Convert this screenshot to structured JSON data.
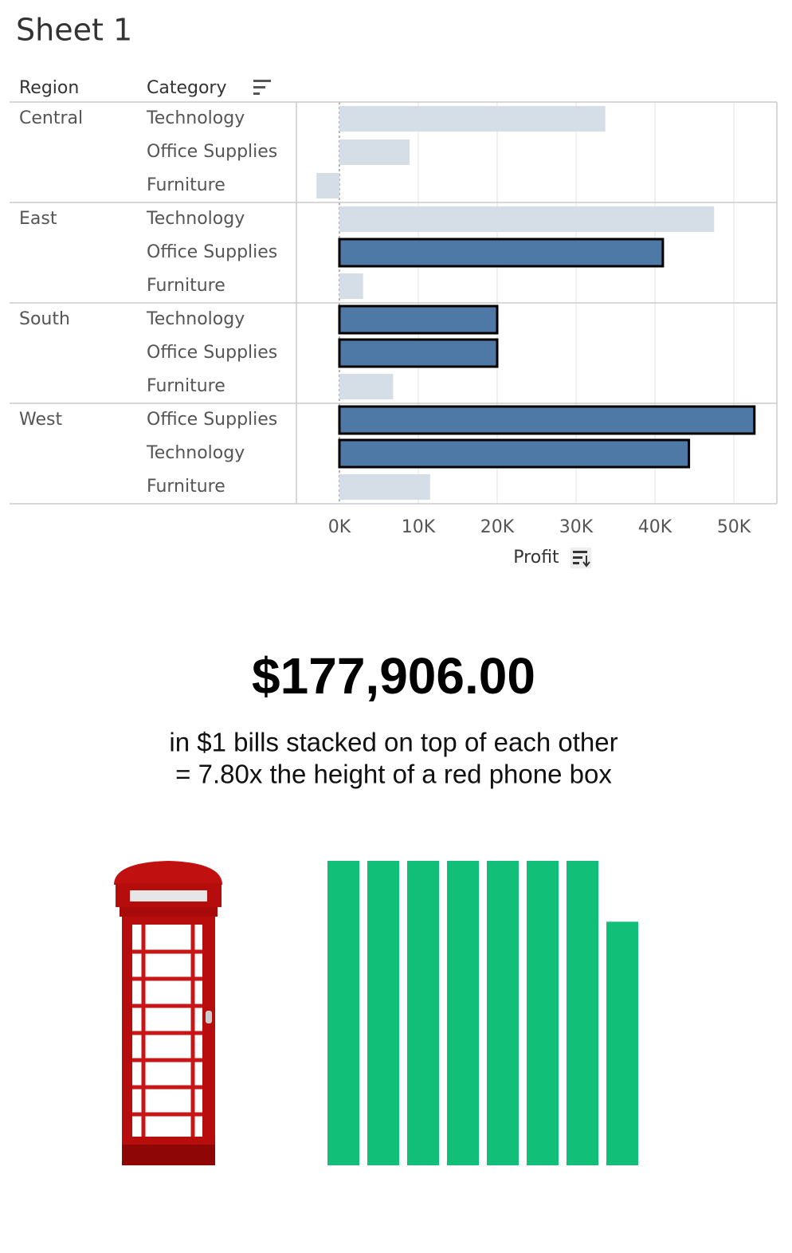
{
  "chart_data": [
    {
      "type": "hbar",
      "title": "Sheet 1",
      "row_headers": [
        "Region",
        "Category"
      ],
      "x_label": "Profit",
      "groups": [
        {
          "name": "Central",
          "categories": [
            "Technology",
            "Office Supplies",
            "Furniture"
          ],
          "values": [
            33700,
            8900,
            -2900
          ],
          "selected": [
            false,
            false,
            false
          ]
        },
        {
          "name": "East",
          "categories": [
            "Technology",
            "Office Supplies",
            "Furniture"
          ],
          "values": [
            47500,
            41000,
            3000
          ],
          "selected": [
            false,
            true,
            false
          ]
        },
        {
          "name": "South",
          "categories": [
            "Technology",
            "Office Supplies",
            "Furniture"
          ],
          "values": [
            20000,
            20000,
            6800
          ],
          "selected": [
            true,
            true,
            false
          ]
        },
        {
          "name": "West",
          "categories": [
            "Office Supplies",
            "Technology",
            "Furniture"
          ],
          "values": [
            52600,
            44300,
            11500
          ],
          "selected": [
            true,
            true,
            false
          ]
        }
      ],
      "color": "#d5dde6",
      "selected_color": "#4e79a7",
      "xlim": [
        -5450,
        55450
      ],
      "xticks": [
        {
          "value": 0,
          "label": "0K"
        },
        {
          "value": 10000,
          "label": "10K"
        },
        {
          "value": 20000,
          "label": "20K"
        },
        {
          "value": 30000,
          "label": "30K"
        },
        {
          "value": 40000,
          "label": "40K"
        },
        {
          "value": 50000,
          "label": "50K"
        }
      ],
      "grid": true
    },
    {
      "type": "bar",
      "categories": [
        null,
        null,
        null,
        null,
        null,
        null,
        null,
        null
      ],
      "values": [
        1,
        1,
        1,
        1,
        1,
        1,
        1,
        0.8
      ],
      "color": "#12bf78",
      "ylim": [
        0,
        1
      ]
    }
  ],
  "headline": "$177,906.00",
  "caption": [
    "in $1 bills stacked on top of each other",
    "= 7.80x the height of a red phone box"
  ]
}
